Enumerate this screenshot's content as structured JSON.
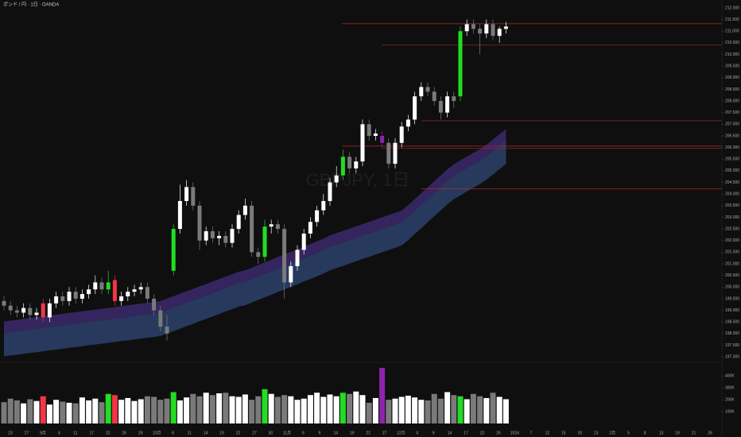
{
  "chart_data": {
    "type": "candlestick",
    "title": "ポンド / 円 · 1日 · OANDA",
    "watermark": "GBPJPY, 1日",
    "up_color": "#ffffff",
    "down_color": "#7a7a7a",
    "level_color": "#b02a2a",
    "ylim": [
      196.8,
      212.34
    ],
    "yticks": [
      {
        "value": 212,
        "label": "212.000"
      },
      {
        "value": 211.5,
        "label": "211.500"
      },
      {
        "value": 211,
        "label": "211.000"
      },
      {
        "value": 210.5,
        "label": "210.500"
      },
      {
        "value": 210,
        "label": "210.000"
      },
      {
        "value": 209.5,
        "label": "209.500"
      },
      {
        "value": 209,
        "label": "209.000"
      },
      {
        "value": 208.5,
        "label": "208.500"
      },
      {
        "value": 208,
        "label": "208.000"
      },
      {
        "value": 207.5,
        "label": "207.500"
      },
      {
        "value": 207,
        "label": "207.000"
      },
      {
        "value": 206.5,
        "label": "206.500"
      },
      {
        "value": 206,
        "label": "206.000"
      },
      {
        "value": 205.5,
        "label": "205.500"
      },
      {
        "value": 205,
        "label": "205.000"
      },
      {
        "value": 204.5,
        "label": "204.500"
      },
      {
        "value": 204,
        "label": "204.000"
      },
      {
        "value": 203.5,
        "label": "203.500"
      },
      {
        "value": 203,
        "label": "203.000"
      },
      {
        "value": 202.5,
        "label": "202.500"
      },
      {
        "value": 202,
        "label": "202.000"
      },
      {
        "value": 201.5,
        "label": "201.500"
      },
      {
        "value": 201,
        "label": "201.000"
      },
      {
        "value": 200.5,
        "label": "200.500"
      },
      {
        "value": 200,
        "label": "200.000"
      },
      {
        "value": 199.5,
        "label": "199.500"
      },
      {
        "value": 199,
        "label": "199.000"
      },
      {
        "value": 198.5,
        "label": "198.500"
      },
      {
        "value": 198,
        "label": "198.000"
      },
      {
        "value": 197.5,
        "label": "197.500"
      },
      {
        "value": 197,
        "label": "197.000"
      }
    ],
    "x_labels": [
      "23",
      "27",
      "9月",
      "4",
      "11",
      "17",
      "22",
      "25",
      "29",
      "10月",
      "6",
      "11",
      "14",
      "19",
      "22",
      "27",
      "30",
      "11月",
      "6",
      "9",
      "14",
      "19",
      "22",
      "27",
      "12月",
      "4",
      "9",
      "14",
      "17",
      "22",
      "26",
      "2024",
      "7",
      "12",
      "15",
      "20",
      "23",
      "2月",
      "5",
      "8",
      "13",
      "18",
      "21",
      "26"
    ],
    "open": [
      199.4,
      199.2,
      199.0,
      198.9,
      199.1,
      198.8,
      199.3,
      198.7,
      199.3,
      199.6,
      199.4,
      199.8,
      199.5,
      199.7,
      199.9,
      200.2,
      199.9,
      200.3,
      199.4,
      199.6,
      199.8,
      199.9,
      200.0,
      199.5,
      199.0,
      198.3,
      200.7,
      202.5,
      203.7,
      204.3,
      203.5,
      202.0,
      202.4,
      202.1,
      202.2,
      201.9,
      202.5,
      203.1,
      203.5,
      201.5,
      201.3,
      202.6,
      202.7,
      202.5,
      200.2,
      200.9,
      201.6,
      202.3,
      202.8,
      203.3,
      203.7,
      204.5,
      204.8,
      205.6,
      205.1,
      205.4,
      207.0,
      206.5,
      206.5,
      206.2,
      205.3,
      206.2,
      206.9,
      207.2,
      208.2,
      208.6,
      208.4,
      208.0,
      207.5,
      208.2,
      208.2,
      211.0,
      211.3,
      211.1,
      210.9,
      211.3,
      210.8,
      211.1
    ],
    "high": [
      199.6,
      199.4,
      199.2,
      199.3,
      199.3,
      199.1,
      199.5,
      199.5,
      199.8,
      199.8,
      200.0,
      200.0,
      199.9,
      200.1,
      200.5,
      200.4,
      200.7,
      200.5,
      199.8,
      200.0,
      200.1,
      200.2,
      200.2,
      199.7,
      199.2,
      198.8,
      202.7,
      204.4,
      204.6,
      204.5,
      203.7,
      202.6,
      202.6,
      202.4,
      202.4,
      202.7,
      203.3,
      203.8,
      203.7,
      201.7,
      202.9,
      202.9,
      202.9,
      202.7,
      201.1,
      201.8,
      202.5,
      203.0,
      203.5,
      204.0,
      204.7,
      205.2,
      205.9,
      205.8,
      205.6,
      207.2,
      207.2,
      206.8,
      206.7,
      206.4,
      206.4,
      207.1,
      207.4,
      208.4,
      208.8,
      208.8,
      208.6,
      208.2,
      208.4,
      208.4,
      211.2,
      211.5,
      211.5,
      211.3,
      211.5,
      211.5,
      211.2,
      211.4
    ],
    "low": [
      199.0,
      198.8,
      198.7,
      198.7,
      198.6,
      198.6,
      198.5,
      198.5,
      199.1,
      199.2,
      199.2,
      199.3,
      199.3,
      199.5,
      199.7,
      199.7,
      199.7,
      199.2,
      199.2,
      199.4,
      199.6,
      199.7,
      199.3,
      198.8,
      198.1,
      197.7,
      200.5,
      202.3,
      203.5,
      203.3,
      201.6,
      201.8,
      201.9,
      201.8,
      201.7,
      201.7,
      202.3,
      202.9,
      201.3,
      201.0,
      201.1,
      202.3,
      202.3,
      199.5,
      200.0,
      200.7,
      201.4,
      202.1,
      202.6,
      203.1,
      203.5,
      204.3,
      204.6,
      204.9,
      204.9,
      205.2,
      206.3,
      206.3,
      206.0,
      205.1,
      205.1,
      206.0,
      206.7,
      207.0,
      208.0,
      208.2,
      207.8,
      207.2,
      207.3,
      207.7,
      208.0,
      210.8,
      210.9,
      210.0,
      210.7,
      210.6,
      210.5,
      210.9
    ],
    "close": [
      199.2,
      199.0,
      198.9,
      199.1,
      198.8,
      198.9,
      198.7,
      199.3,
      199.6,
      199.4,
      199.8,
      199.5,
      199.7,
      199.9,
      200.2,
      199.9,
      200.2,
      199.4,
      199.6,
      199.8,
      199.9,
      200.0,
      199.5,
      199.0,
      198.3,
      198.0,
      202.5,
      203.7,
      204.3,
      203.5,
      202.0,
      202.4,
      202.1,
      202.2,
      201.9,
      202.5,
      203.1,
      203.5,
      201.5,
      201.3,
      202.6,
      202.7,
      202.5,
      200.2,
      200.9,
      201.6,
      202.3,
      202.8,
      203.3,
      203.7,
      204.5,
      204.8,
      205.6,
      205.1,
      205.4,
      207.0,
      206.5,
      206.6,
      206.2,
      205.3,
      206.2,
      206.9,
      207.2,
      208.2,
      208.6,
      208.4,
      208.0,
      207.5,
      208.2,
      208.0,
      211.0,
      211.3,
      211.1,
      210.9,
      211.3,
      210.8,
      211.1,
      211.2
    ],
    "candle_colors": [
      null,
      null,
      null,
      null,
      null,
      null,
      "#f23645",
      null,
      null,
      null,
      null,
      null,
      null,
      null,
      null,
      null,
      "#22dd22",
      "#f23645",
      null,
      null,
      null,
      null,
      null,
      null,
      null,
      null,
      "#22dd22",
      null,
      null,
      null,
      null,
      null,
      null,
      null,
      null,
      null,
      null,
      null,
      null,
      null,
      "#22dd22",
      null,
      null,
      null,
      null,
      null,
      null,
      null,
      null,
      null,
      null,
      null,
      "#22dd22",
      null,
      null,
      null,
      null,
      null,
      "#8e24aa",
      null,
      null,
      null,
      null,
      null,
      null,
      null,
      null,
      null,
      null,
      null,
      "#22dd22",
      null,
      null,
      null,
      null,
      null,
      null,
      null
    ],
    "bands": [
      {
        "color": "#3a2868",
        "values": [
          198.52,
          198.56,
          198.59,
          198.63,
          198.67,
          198.7,
          198.74,
          198.78,
          198.81,
          198.85,
          198.89,
          198.92,
          198.96,
          199.0,
          199.03,
          199.07,
          199.1,
          199.14,
          199.18,
          199.21,
          199.25,
          199.29,
          199.32,
          199.36,
          199.4,
          199.5,
          199.61,
          199.71,
          199.82,
          199.92,
          200.03,
          200.13,
          200.24,
          200.34,
          200.45,
          200.55,
          200.66,
          200.72,
          200.83,
          200.95,
          201.06,
          201.17,
          201.29,
          201.4,
          201.51,
          201.62,
          201.74,
          201.85,
          201.96,
          202.08,
          202.22,
          202.32,
          202.41,
          202.51,
          202.61,
          202.71,
          202.8,
          202.9,
          203.0,
          203.09,
          203.19,
          203.29,
          203.52,
          203.78,
          204.03,
          204.29,
          204.55,
          204.8,
          205.06,
          205.28,
          205.44,
          205.61,
          205.77,
          205.93,
          206.12,
          206.34,
          206.57,
          206.79
        ]
      },
      {
        "color": "#2a3f66",
        "values": [
          198.02,
          198.06,
          198.09,
          198.13,
          198.17,
          198.2,
          198.24,
          198.28,
          198.31,
          198.35,
          198.39,
          198.42,
          198.46,
          198.5,
          198.53,
          198.57,
          198.6,
          198.64,
          198.68,
          198.71,
          198.75,
          198.79,
          198.82,
          198.86,
          198.9,
          199.0,
          199.11,
          199.21,
          199.32,
          199.42,
          199.53,
          199.63,
          199.74,
          199.84,
          199.95,
          200.05,
          200.16,
          200.22,
          200.33,
          200.45,
          200.56,
          200.67,
          200.79,
          200.9,
          201.01,
          201.12,
          201.24,
          201.35,
          201.46,
          201.58,
          201.72,
          201.82,
          201.91,
          202.01,
          202.11,
          202.21,
          202.3,
          202.4,
          202.5,
          202.59,
          202.69,
          202.79,
          203.02,
          203.28,
          203.53,
          203.79,
          204.05,
          204.3,
          204.56,
          204.78,
          204.94,
          205.11,
          205.27,
          205.43,
          205.62,
          205.84,
          206.07,
          206.29
        ]
      },
      {
        "values": [
          197.02,
          197.06,
          197.09,
          197.13,
          197.17,
          197.2,
          197.24,
          197.28,
          197.31,
          197.35,
          197.39,
          197.42,
          197.46,
          197.5,
          197.53,
          197.57,
          197.6,
          197.64,
          197.68,
          197.71,
          197.75,
          197.79,
          197.82,
          197.86,
          197.9,
          198.0,
          198.11,
          198.21,
          198.32,
          198.42,
          198.53,
          198.63,
          198.74,
          198.84,
          198.95,
          199.05,
          199.16,
          199.22,
          199.33,
          199.45,
          199.56,
          199.67,
          199.79,
          199.9,
          200.01,
          200.12,
          200.24,
          200.35,
          200.46,
          200.58,
          200.72,
          200.82,
          200.91,
          201.01,
          201.11,
          201.21,
          201.3,
          201.4,
          201.5,
          201.59,
          201.69,
          201.79,
          202.02,
          202.28,
          202.53,
          202.79,
          203.05,
          203.3,
          203.56,
          203.78,
          203.94,
          204.11,
          204.27,
          204.43,
          204.62,
          204.84,
          205.07,
          205.29
        ]
      }
    ],
    "levels": [
      211.32,
      210.4,
      207.15,
      206.06,
      205.96,
      204.22
    ],
    "volume": [
      180000,
      210000,
      195000,
      170000,
      205000,
      190000,
      230000,
      160000,
      200000,
      185000,
      175000,
      170000,
      220000,
      195000,
      210000,
      180000,
      250000,
      240000,
      200000,
      215000,
      190000,
      205000,
      230000,
      225000,
      200000,
      210000,
      265000,
      195000,
      220000,
      250000,
      230000,
      260000,
      240000,
      255000,
      260000,
      230000,
      225000,
      245000,
      200000,
      230000,
      290000,
      250000,
      225000,
      240000,
      230000,
      200000,
      210000,
      240000,
      260000,
      225000,
      245000,
      230000,
      260000,
      250000,
      270000,
      240000,
      175000,
      215000,
      470000,
      200000,
      210000,
      225000,
      235000,
      220000,
      200000,
      195000,
      250000,
      210000,
      265000,
      240000,
      230000,
      205000,
      250000,
      230000,
      215000,
      260000,
      225000,
      205000
    ],
    "volume_ylim": [
      0,
      490000
    ],
    "volume_yticks": [
      {
        "value": 100000,
        "label": "100K"
      },
      {
        "value": 200000,
        "label": "200K"
      },
      {
        "value": 300000,
        "label": "300K"
      },
      {
        "value": 400000,
        "label": "400K"
      }
    ]
  }
}
